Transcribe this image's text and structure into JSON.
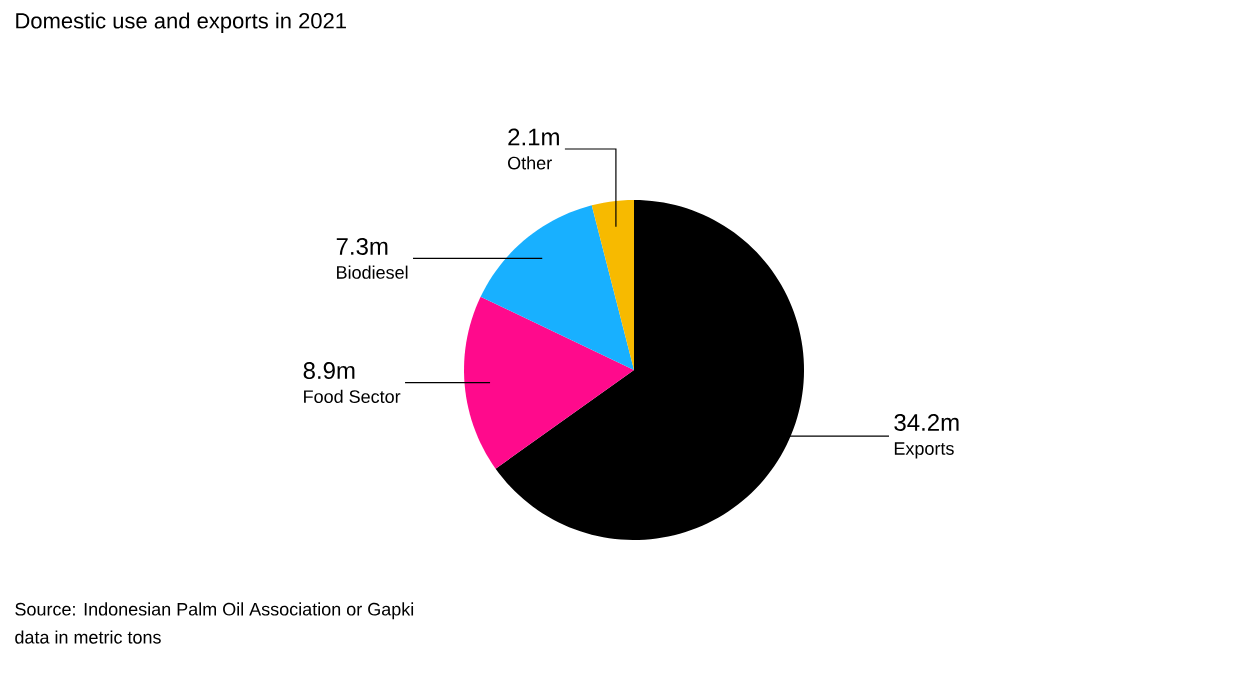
{
  "chart_data": {
    "type": "pie",
    "title": "Domestic use and exports in 2021",
    "categories": [
      "Exports",
      "Food Sector",
      "Biodiesel",
      "Other"
    ],
    "values": [
      34.2,
      8.9,
      7.3,
      2.1
    ],
    "colors": [
      "#000000",
      "#ff0a8c",
      "#18b0ff",
      "#f7ba00"
    ],
    "value_labels": [
      "34.2m",
      "8.9m",
      "7.3m",
      "2.1m"
    ],
    "annotations": [
      "Source: Indonesian Palm Oil Association or Gapki",
      "data in metric tons"
    ]
  }
}
